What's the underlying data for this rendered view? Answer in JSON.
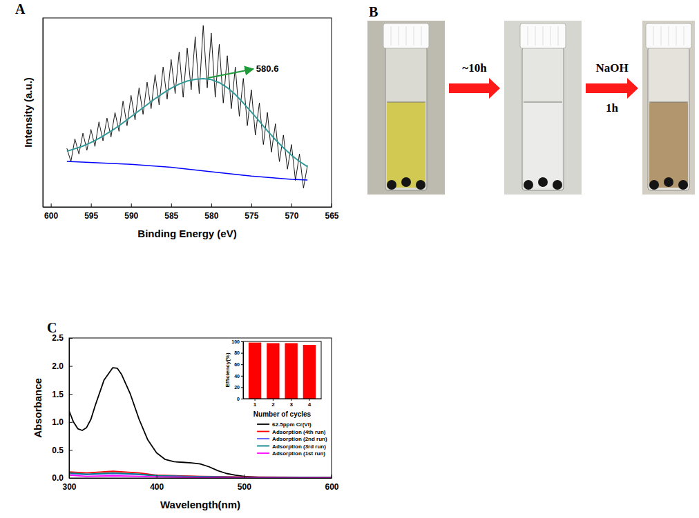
{
  "chart_data": [
    {
      "type": "line",
      "panel": "A",
      "xlabel": "Binding Energy (eV)",
      "ylabel": "Intensity (a.u.)",
      "xlim": [
        601,
        565
      ],
      "xticks": [
        600,
        595,
        590,
        585,
        580,
        575,
        570,
        565
      ],
      "ylim": [
        0,
        100
      ],
      "tick_labels": "x",
      "series": [
        {
          "color": "#000000",
          "x": [
            598,
            597.5,
            597,
            596.5,
            596,
            595.5,
            595,
            594.5,
            594,
            593.5,
            593,
            592.5,
            592,
            591.5,
            591,
            590.5,
            590,
            589.5,
            589,
            588.5,
            588,
            587.5,
            587,
            586.5,
            586,
            585.5,
            585,
            584.5,
            584,
            583.5,
            583,
            582.5,
            582,
            581.5,
            581,
            580.5,
            580,
            579.5,
            579,
            578.5,
            578,
            577.5,
            577,
            576.5,
            576,
            575.5,
            575,
            574.5,
            574,
            573.5,
            573,
            572.5,
            572,
            571.5,
            571,
            570.5,
            570,
            569.5,
            569,
            568.5,
            568
          ],
          "values": [
            31,
            24,
            36,
            28,
            39,
            30,
            41,
            32,
            45,
            35,
            47,
            37,
            50,
            40,
            56,
            43,
            59,
            46,
            63,
            49,
            66,
            52,
            70,
            54,
            74,
            57,
            78,
            60,
            82,
            58,
            84,
            62,
            90,
            60,
            96,
            63,
            92,
            58,
            86,
            55,
            80,
            52,
            74,
            48,
            68,
            43,
            62,
            38,
            55,
            33,
            50,
            29,
            44,
            24,
            38,
            20,
            33,
            14,
            28,
            10,
            22
          ]
        },
        {
          "color": "#339999",
          "x": [
            598,
            597,
            596,
            595,
            594,
            593,
            592,
            591,
            590,
            589,
            588,
            587,
            586,
            585,
            584,
            583,
            582,
            581,
            580,
            579,
            578,
            577,
            576,
            575,
            574,
            573,
            572,
            571,
            570,
            569,
            568
          ],
          "values": [
            29.5,
            30.8,
            32.2,
            34.1,
            36.3,
            38.8,
            41.5,
            44.5,
            47.7,
            50.9,
            54.1,
            57.3,
            60.2,
            62.8,
            65.0,
            66.6,
            67.5,
            67.9,
            67.4,
            65.8,
            63.1,
            59.5,
            55.0,
            50.2,
            45.3,
            40.3,
            35.6,
            31.3,
            27.4,
            24.1,
            21.3
          ]
        },
        {
          "color": "#0000ff",
          "x": [
            598,
            590,
            585,
            580,
            575,
            570,
            568
          ],
          "values": [
            24.1,
            22.5,
            21.0,
            18.6,
            16.3,
            14.6,
            14.2
          ]
        }
      ],
      "annotations": [
        {
          "text": "580.6",
          "x": 580.6,
          "y": 67.9
        }
      ]
    },
    {
      "type": "line",
      "panel": "C",
      "xlabel": "Wavelength(nm)",
      "ylabel": "Absorbance",
      "xlim": [
        300,
        600
      ],
      "xticks": [
        300,
        400,
        500,
        600
      ],
      "ylim": [
        0,
        2.5
      ],
      "yticks": [
        {
          "value": 0,
          "label": "0.0"
        },
        {
          "value": 0.5,
          "label": "0.5"
        },
        {
          "value": 1,
          "label": "1.0"
        },
        {
          "value": 1.5,
          "label": "1.5"
        },
        {
          "value": 2,
          "label": "2.0"
        },
        {
          "value": 2.5,
          "label": "2.5"
        }
      ],
      "legend": "lower right",
      "series": [
        {
          "name": "62.5ppm Cr(VI)",
          "color": "#000000",
          "x": [
            300,
            305,
            310,
            315,
            320,
            325,
            330,
            340,
            350,
            355,
            360,
            370,
            380,
            390,
            400,
            410,
            420,
            430,
            440,
            450,
            460,
            470,
            480,
            490,
            500,
            510,
            520,
            550,
            600
          ],
          "values": [
            1.2,
            1.0,
            0.88,
            0.85,
            0.9,
            1.05,
            1.3,
            1.75,
            1.97,
            1.96,
            1.85,
            1.5,
            1.05,
            0.68,
            0.45,
            0.33,
            0.29,
            0.28,
            0.27,
            0.25,
            0.2,
            0.13,
            0.08,
            0.05,
            0.03,
            0.02,
            0.01,
            0.01,
            0.005
          ]
        },
        {
          "name": "Adsorption (4th run)",
          "color": "#ff0000",
          "x": [
            300,
            320,
            350,
            380,
            400,
            450,
            500,
            600
          ],
          "values": [
            0.11,
            0.09,
            0.12,
            0.09,
            0.05,
            0.03,
            0.02,
            0.01
          ]
        },
        {
          "name": "Adsorption (2nd run)",
          "color": "#5555ff",
          "x": [
            300,
            320,
            350,
            380,
            400,
            450,
            500,
            600
          ],
          "values": [
            0.08,
            0.06,
            0.08,
            0.06,
            0.04,
            0.02,
            0.01,
            0.005
          ]
        },
        {
          "name": "Adsorption (3rd run)",
          "color": "#008080",
          "x": [
            300,
            320,
            350,
            380,
            400,
            450,
            500,
            600
          ],
          "values": [
            0.09,
            0.07,
            0.09,
            0.07,
            0.04,
            0.025,
            0.015,
            0.008
          ]
        },
        {
          "name": "Adsorption (1st run)",
          "color": "#ff00ff",
          "x": [
            300,
            320,
            350,
            380,
            400,
            450,
            500,
            600
          ],
          "values": [
            0.05,
            0.03,
            0.04,
            0.03,
            0.02,
            0.01,
            0.005,
            0.002
          ]
        }
      ]
    },
    {
      "type": "bar",
      "xlabel": "Number of cycles",
      "ylabel": "Efficiency(%)",
      "categories": [
        "1",
        "2",
        "3",
        "4"
      ],
      "values": [
        98,
        97,
        97,
        94
      ],
      "color": "#ff0000",
      "ylim": [
        0,
        100
      ],
      "yticks": [
        0,
        20,
        40,
        60,
        80,
        100
      ]
    }
  ],
  "photo_panel": {
    "panel": "B",
    "steps": [
      {
        "label": "~10h"
      },
      {
        "label": "NaOH",
        "sublabel": "1h"
      }
    ]
  }
}
